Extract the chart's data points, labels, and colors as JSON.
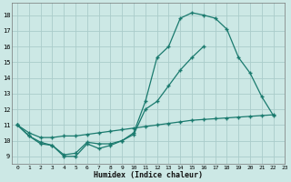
{
  "line1_x": [
    0,
    1,
    2,
    3,
    4,
    5,
    6,
    7,
    8,
    9,
    10,
    11,
    12,
    13,
    14,
    15,
    16,
    17,
    18,
    19,
    20,
    21,
    22
  ],
  "line1_y": [
    11.0,
    10.3,
    9.8,
    9.7,
    9.0,
    9.0,
    9.8,
    9.5,
    9.7,
    10.0,
    10.5,
    12.5,
    15.3,
    16.0,
    17.8,
    18.15,
    18.0,
    17.8,
    17.1,
    15.3,
    14.3,
    12.8,
    11.6
  ],
  "line2_x": [
    0,
    1,
    2,
    3,
    4,
    5,
    6,
    7,
    8,
    9,
    10,
    11,
    12,
    13,
    14,
    15,
    16
  ],
  "line2_y": [
    11.0,
    10.3,
    9.9,
    9.7,
    9.1,
    9.2,
    9.9,
    9.8,
    9.8,
    10.0,
    10.4,
    12.0,
    12.5,
    13.5,
    14.5,
    15.3,
    16.0
  ],
  "line3_x": [
    0,
    1,
    2,
    3,
    4,
    5,
    6,
    7,
    8,
    9,
    10,
    11,
    12,
    13,
    14,
    15,
    16,
    17,
    18,
    19,
    20,
    21,
    22
  ],
  "line3_y": [
    11.0,
    10.5,
    10.2,
    10.2,
    10.3,
    10.3,
    10.4,
    10.5,
    10.6,
    10.7,
    10.8,
    10.9,
    11.0,
    11.1,
    11.2,
    11.3,
    11.35,
    11.4,
    11.45,
    11.5,
    11.55,
    11.6,
    11.65
  ],
  "color": "#1a7a6e",
  "bg_color": "#cce8e5",
  "grid_color": "#aaccca",
  "xlabel": "Humidex (Indice chaleur)",
  "ylim": [
    8.5,
    18.8
  ],
  "xlim": [
    -0.5,
    23.0
  ],
  "yticks": [
    9,
    10,
    11,
    12,
    13,
    14,
    15,
    16,
    17,
    18
  ],
  "xticks": [
    0,
    1,
    2,
    3,
    4,
    5,
    6,
    7,
    8,
    9,
    10,
    11,
    12,
    13,
    14,
    15,
    16,
    17,
    18,
    19,
    20,
    21,
    22,
    23
  ]
}
